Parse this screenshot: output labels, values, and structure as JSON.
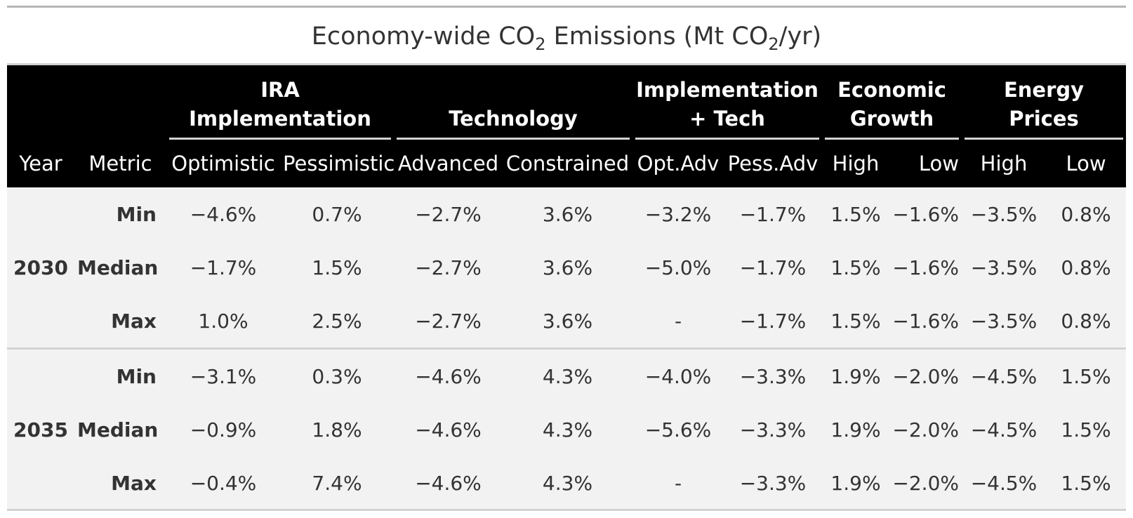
{
  "title": {
    "prefix": "Economy-wide CO",
    "sub1": "2",
    "middle": " Emissions (Mt CO",
    "sub2": "2",
    "suffix": "/yr)"
  },
  "header": {
    "groups": [
      {
        "line1": "IRA",
        "line2": "Implementation"
      },
      {
        "line1": "Technology",
        "line2": ""
      },
      {
        "line1": "Implementation",
        "line2": "+ Tech"
      },
      {
        "line1": "Economic",
        "line2": "Growth"
      },
      {
        "line1": "Energy",
        "line2": "Prices"
      }
    ],
    "columns": [
      "Year",
      "Metric",
      "Optimistic",
      "Pessimistic",
      "Advanced",
      "Constrained",
      "Opt.Adv",
      "Pess.Adv",
      "High",
      "Low",
      "High",
      "Low"
    ]
  },
  "rows": [
    {
      "year": "",
      "metric": "Min",
      "values": [
        "−4.6%",
        "0.7%",
        "−2.7%",
        "3.6%",
        "−3.2%",
        "−1.7%",
        "1.5%",
        "−1.6%",
        "−3.5%",
        "0.8%"
      ]
    },
    {
      "year": "2030",
      "metric": "Median",
      "values": [
        "−1.7%",
        "1.5%",
        "−2.7%",
        "3.6%",
        "−5.0%",
        "−1.7%",
        "1.5%",
        "−1.6%",
        "−3.5%",
        "0.8%"
      ]
    },
    {
      "year": "",
      "metric": "Max",
      "values": [
        "1.0%",
        "2.5%",
        "−2.7%",
        "3.6%",
        "-",
        "−1.7%",
        "1.5%",
        "−1.6%",
        "−3.5%",
        "0.8%"
      ]
    },
    {
      "year": "",
      "metric": "Min",
      "values": [
        "−3.1%",
        "0.3%",
        "−4.6%",
        "4.3%",
        "−4.0%",
        "−3.3%",
        "1.9%",
        "−2.0%",
        "−4.5%",
        "1.5%"
      ]
    },
    {
      "year": "2035",
      "metric": "Median",
      "values": [
        "−0.9%",
        "1.8%",
        "−4.6%",
        "4.3%",
        "−5.6%",
        "−3.3%",
        "1.9%",
        "−2.0%",
        "−4.5%",
        "1.5%"
      ]
    },
    {
      "year": "",
      "metric": "Max",
      "values": [
        "−0.4%",
        "7.4%",
        "−4.6%",
        "4.3%",
        "-",
        "−3.3%",
        "1.9%",
        "−2.0%",
        "−4.5%",
        "1.5%"
      ]
    }
  ]
}
